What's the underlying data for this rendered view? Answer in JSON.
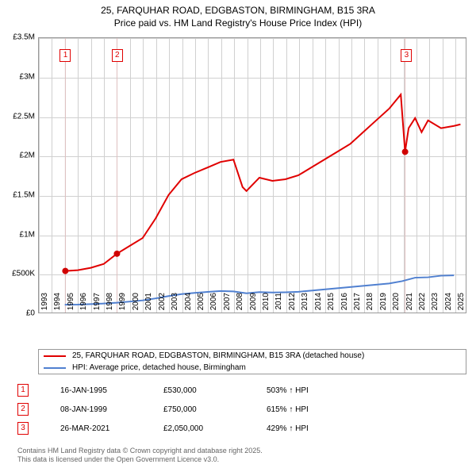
{
  "title_line1": "25, FARQUHAR ROAD, EDGBASTON, BIRMINGHAM, B15 3RA",
  "title_line2": "Price paid vs. HM Land Registry's House Price Index (HPI)",
  "chart": {
    "type": "line",
    "x_min": 1993,
    "x_max": 2025.9,
    "y_min": 0,
    "y_max": 3500000,
    "y_tick_step": 500000,
    "y_labels": [
      "£0",
      "£500K",
      "£1M",
      "£1.5M",
      "£2M",
      "£2.5M",
      "£3M",
      "£3.5M"
    ],
    "x_ticks": [
      1993,
      1994,
      1995,
      1996,
      1997,
      1998,
      1999,
      2000,
      2001,
      2002,
      2003,
      2004,
      2005,
      2006,
      2007,
      2008,
      2009,
      2010,
      2011,
      2012,
      2013,
      2014,
      2015,
      2016,
      2017,
      2018,
      2019,
      2020,
      2021,
      2022,
      2023,
      2024,
      2025
    ],
    "background_color": "#ffffff",
    "grid_color": "#d0d0d0",
    "series": {
      "property": {
        "color": "#e00000",
        "width": 2,
        "data": [
          [
            1995.04,
            530000
          ],
          [
            1996,
            540000
          ],
          [
            1997,
            570000
          ],
          [
            1998,
            620000
          ],
          [
            1999.02,
            750000
          ],
          [
            2000,
            850000
          ],
          [
            2001,
            950000
          ],
          [
            2002,
            1200000
          ],
          [
            2003,
            1500000
          ],
          [
            2004,
            1700000
          ],
          [
            2005,
            1780000
          ],
          [
            2006,
            1850000
          ],
          [
            2007,
            1920000
          ],
          [
            2008,
            1950000
          ],
          [
            2008.7,
            1600000
          ],
          [
            2009,
            1550000
          ],
          [
            2010,
            1720000
          ],
          [
            2011,
            1680000
          ],
          [
            2012,
            1700000
          ],
          [
            2013,
            1750000
          ],
          [
            2014,
            1850000
          ],
          [
            2015,
            1950000
          ],
          [
            2016,
            2050000
          ],
          [
            2017,
            2150000
          ],
          [
            2018,
            2300000
          ],
          [
            2019,
            2450000
          ],
          [
            2020,
            2600000
          ],
          [
            2020.9,
            2780000
          ],
          [
            2021.23,
            2050000
          ],
          [
            2021.5,
            2350000
          ],
          [
            2022,
            2480000
          ],
          [
            2022.5,
            2300000
          ],
          [
            2023,
            2450000
          ],
          [
            2024,
            2350000
          ],
          [
            2025,
            2380000
          ],
          [
            2025.5,
            2400000
          ]
        ]
      },
      "hpi": {
        "color": "#5080d0",
        "width": 2,
        "data": [
          [
            1995,
            100000
          ],
          [
            1996,
            102000
          ],
          [
            1997,
            108000
          ],
          [
            1998,
            115000
          ],
          [
            1999,
            125000
          ],
          [
            2000,
            140000
          ],
          [
            2001,
            155000
          ],
          [
            2002,
            180000
          ],
          [
            2003,
            210000
          ],
          [
            2004,
            235000
          ],
          [
            2005,
            250000
          ],
          [
            2006,
            262000
          ],
          [
            2007,
            275000
          ],
          [
            2008,
            270000
          ],
          [
            2009,
            245000
          ],
          [
            2010,
            260000
          ],
          [
            2011,
            255000
          ],
          [
            2012,
            258000
          ],
          [
            2013,
            265000
          ],
          [
            2014,
            280000
          ],
          [
            2015,
            295000
          ],
          [
            2016,
            310000
          ],
          [
            2017,
            325000
          ],
          [
            2018,
            340000
          ],
          [
            2019,
            355000
          ],
          [
            2020,
            370000
          ],
          [
            2021,
            400000
          ],
          [
            2022,
            445000
          ],
          [
            2023,
            450000
          ],
          [
            2024,
            470000
          ],
          [
            2025,
            475000
          ]
        ]
      }
    },
    "sale_points": [
      {
        "x": 1995.04,
        "y": 530000
      },
      {
        "x": 1999.02,
        "y": 750000
      },
      {
        "x": 2021.23,
        "y": 2050000
      }
    ],
    "markers": [
      {
        "num": "1",
        "x": 1995.04,
        "color": "#e00000"
      },
      {
        "num": "2",
        "x": 1999.02,
        "color": "#e00000"
      },
      {
        "num": "3",
        "x": 2021.23,
        "color": "#e00000"
      }
    ]
  },
  "legend": {
    "items": [
      {
        "color": "#e00000",
        "label": "25, FARQUHAR ROAD, EDGBASTON, BIRMINGHAM, B15 3RA (detached house)"
      },
      {
        "color": "#5080d0",
        "label": "HPI: Average price, detached house, Birmingham"
      }
    ]
  },
  "sales": [
    {
      "num": "1",
      "color": "#e00000",
      "date": "16-JAN-1995",
      "price": "£530,000",
      "pct": "503% ↑ HPI"
    },
    {
      "num": "2",
      "color": "#e00000",
      "date": "08-JAN-1999",
      "price": "£750,000",
      "pct": "615% ↑ HPI"
    },
    {
      "num": "3",
      "color": "#e00000",
      "date": "26-MAR-2021",
      "price": "£2,050,000",
      "pct": "429% ↑ HPI"
    }
  ],
  "footer_line1": "Contains HM Land Registry data © Crown copyright and database right 2025.",
  "footer_line2": "This data is licensed under the Open Government Licence v3.0."
}
